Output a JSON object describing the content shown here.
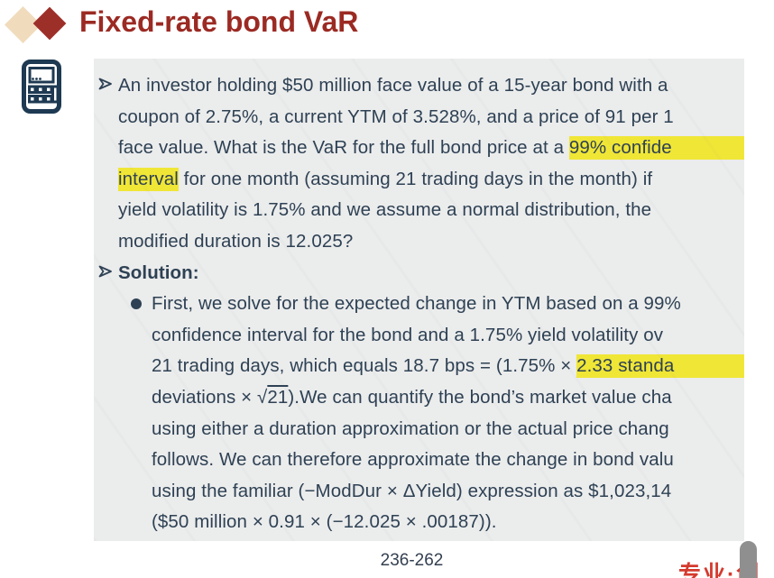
{
  "title": {
    "text": "Fixed-rate bond VaR"
  },
  "colors": {
    "title_red": "#9b2a23",
    "diamond_red": "#9d2f29",
    "diamond_beige": "#f0dcbd",
    "panel_bg": "#ebecec",
    "body_text": "#2e4154",
    "highlight_yellow": "#f0e636",
    "brand_red": "#d43a2e",
    "icon_navy": "#1e3952"
  },
  "icons": {
    "calculator": "calculator-icon",
    "arrow_bullet": "arrow-bullet-icon",
    "dot_bullet": "dot-bullet-icon"
  },
  "slide": {
    "paragraphs": [
      {
        "marker": "arrow",
        "indent": 1,
        "lines": [
          [
            {
              "text": "An investor holding $50 million face value of a 15-year bond with a"
            }
          ],
          [
            {
              "text": "coupon of 2.75%, a current YTM of 3.528%, and a price of 91 per 1"
            }
          ],
          [
            {
              "text": "face value. What is the VaR for the full bond price at a "
            },
            {
              "text": "99% confide",
              "highlight": true,
              "extend": true
            }
          ],
          [
            {
              "text": "interval",
              "highlight": true
            },
            {
              "text": " for one month (assuming 21 trading days in the month) if"
            }
          ],
          [
            {
              "text": "yield volatility is 1.75% and we assume a normal distribution, the"
            }
          ],
          [
            {
              "text": "modified duration is 12.025?"
            }
          ]
        ]
      },
      {
        "marker": "arrow",
        "indent": 1,
        "lines": [
          [
            {
              "text": "Solution:",
              "bold": true
            }
          ]
        ]
      },
      {
        "marker": "dot",
        "indent": 2,
        "lines": [
          [
            {
              "text": "First, we solve for the expected change in YTM based on a 99%"
            }
          ],
          [
            {
              "text": "confidence interval for the bond and a 1.75% yield volatility ov"
            }
          ],
          [
            {
              "text": "21 trading days, which equals 18.7 bps = (1.75% × "
            },
            {
              "text": "2.33 standa",
              "highlight": true,
              "extend": true
            }
          ],
          [
            {
              "text": "deviations × √"
            },
            {
              "text": "21",
              "overline": true
            },
            {
              "text": ").We can quantify the bond’s market value cha"
            }
          ],
          [
            {
              "text": "using either a duration approximation or the actual price chang"
            }
          ],
          [
            {
              "text": "follows. We can therefore approximate the change in bond valu"
            }
          ],
          [
            {
              "text": "using the familiar (−ModDur × ΔYield) expression as $1,023,14"
            }
          ],
          [
            {
              "text": "($50 million × 0.91 × (−12.025 × .00187))."
            }
          ]
        ]
      }
    ]
  },
  "footer": {
    "page_number": "236-262",
    "brand_text": "专业·创"
  }
}
